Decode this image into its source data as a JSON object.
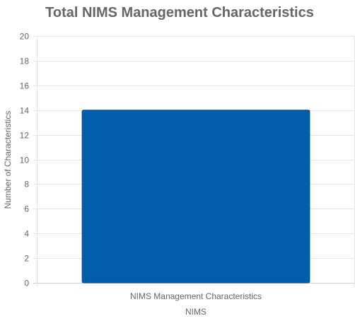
{
  "chart_data": {
    "type": "bar",
    "title": "Total NIMS Management Characteristics",
    "xlabel": "NIMS",
    "ylabel": "Number of Characteristics",
    "categories": [
      "NIMS Management Characteristics"
    ],
    "series": [
      {
        "values": [
          14
        ]
      }
    ],
    "ylim": [
      0,
      20
    ],
    "yticks": [
      0,
      2,
      4,
      6,
      8,
      10,
      12,
      14,
      16,
      18,
      20
    ],
    "grid": true,
    "legend": "none",
    "colors": {
      "bar": "#005eaa",
      "bar_border": "#0b4f8a",
      "text": "#666666",
      "grid": "#e5e5e5"
    }
  }
}
